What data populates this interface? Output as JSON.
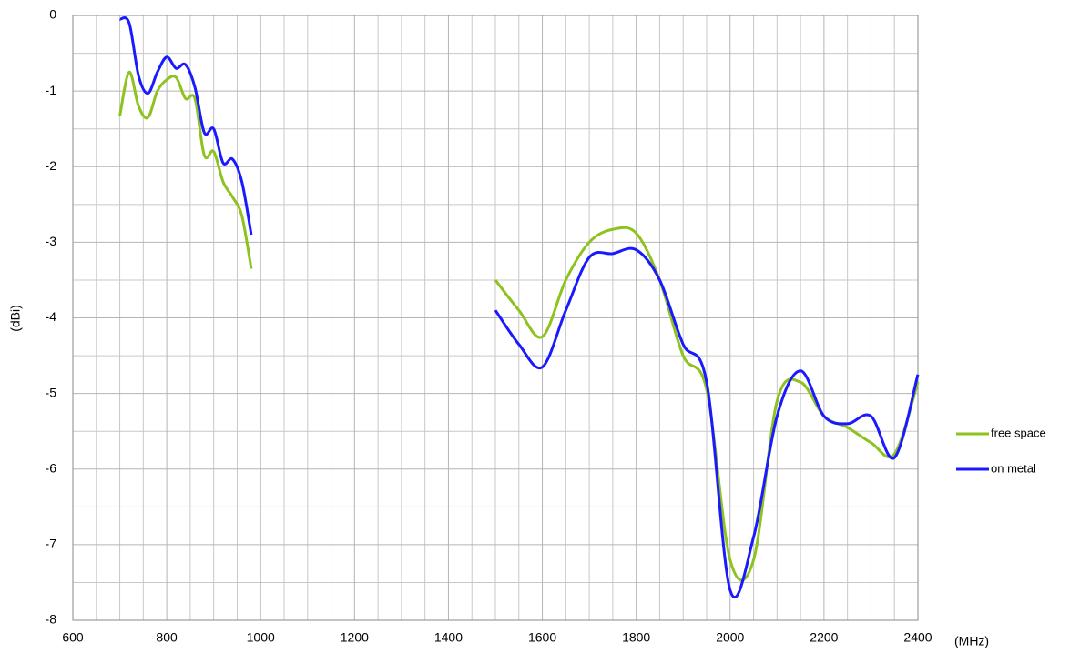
{
  "chart_data": {
    "type": "line",
    "x_label": "(MHz)",
    "y_label": "(dBi)",
    "x": [
      700,
      720,
      740,
      760,
      780,
      800,
      820,
      840,
      860,
      880,
      900,
      920,
      940,
      960,
      980,
      null,
      1500,
      1550,
      1600,
      1650,
      1700,
      1750,
      1800,
      1850,
      1900,
      1950,
      2000,
      2050,
      2100,
      2150,
      2200,
      2250,
      2300,
      2350,
      2400
    ],
    "series": [
      {
        "name": "free space",
        "color": "#8dc21f",
        "values": [
          -1.33,
          -0.75,
          -1.2,
          -1.35,
          -1.0,
          -0.85,
          -0.82,
          -1.1,
          -1.1,
          -1.85,
          -1.8,
          -2.2,
          -2.4,
          -2.65,
          -3.35,
          null,
          -3.5,
          -3.9,
          -4.25,
          -3.5,
          -3.0,
          -2.83,
          -2.88,
          -3.5,
          -4.5,
          -4.95,
          -7.2,
          -7.2,
          -5.1,
          -4.85,
          -5.3,
          -5.45,
          -5.65,
          -5.8,
          -4.85
        ]
      },
      {
        "name": "on metal",
        "color": "#1a1aff",
        "values": [
          -0.05,
          -0.1,
          -0.8,
          -1.03,
          -0.75,
          -0.55,
          -0.7,
          -0.65,
          -0.95,
          -1.55,
          -1.5,
          -1.95,
          -1.9,
          -2.2,
          -2.9,
          null,
          -3.9,
          -4.35,
          -4.65,
          -3.9,
          -3.2,
          -3.15,
          -3.1,
          -3.5,
          -4.35,
          -4.85,
          -7.6,
          -6.9,
          -5.3,
          -4.7,
          -5.3,
          -5.4,
          -5.3,
          -5.85,
          -4.75
        ]
      }
    ],
    "xlim": [
      600,
      2400
    ],
    "xticks": [
      600,
      800,
      1000,
      1200,
      1400,
      1600,
      1800,
      2000,
      2200,
      2400
    ],
    "ylim": [
      -8,
      0
    ],
    "yticks": [
      -8,
      -7,
      -6,
      -5,
      -4,
      -3,
      -2,
      -1,
      0
    ],
    "grid": true,
    "legend": "right"
  }
}
